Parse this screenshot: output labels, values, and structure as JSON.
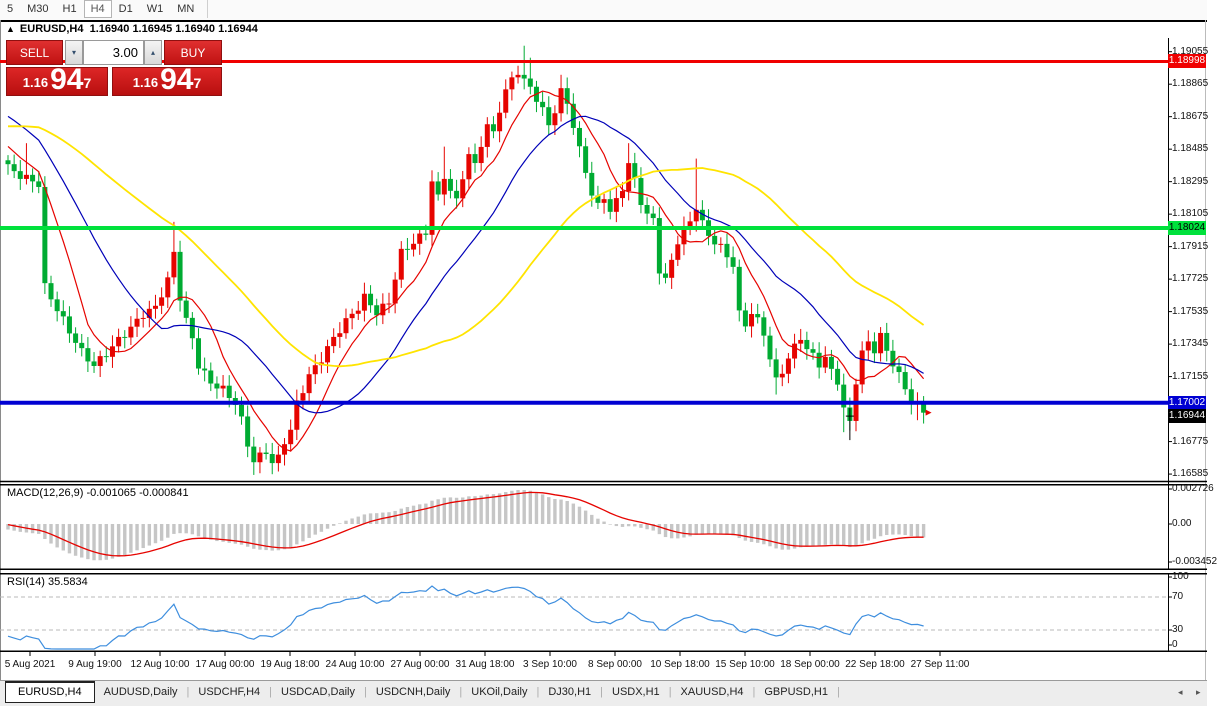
{
  "toolbar": {
    "timeframes": [
      "5",
      "M30",
      "H1",
      "H4",
      "D1",
      "W1",
      "MN"
    ],
    "active": "H4"
  },
  "window_header": {
    "collapse_icon": "▲",
    "symbol_tf": "EURUSD,H4",
    "quotes": "1.16940 1.16945 1.16940 1.16944"
  },
  "trade_panel": {
    "sell_label": "SELL",
    "buy_label": "BUY",
    "volume": "3.00",
    "stepper_down_icon": "▾",
    "stepper_up_icon": "▴",
    "sell_price": {
      "small": "1.16",
      "big": "94",
      "sup": "7"
    },
    "buy_price": {
      "small": "1.16",
      "big": "94",
      "sup": "7"
    }
  },
  "tabs": {
    "items": [
      "EURUSD,H4",
      "AUDUSD,Daily",
      "USDCHF,H4",
      "USDCAD,Daily",
      "USDCNH,Daily",
      "UKOil,Daily",
      "DJ30,H1",
      "USDX,H1",
      "XAUUSD,H4",
      "GBPUSD,H1"
    ],
    "active": "EURUSD,H4",
    "scroll_left_icon": "◂",
    "scroll_right_icon": "▸"
  },
  "chart_data": {
    "type": "candlestick",
    "symbol": "EURUSD",
    "timeframe": "H4",
    "up_color": "#e60400",
    "down_color": "#00ab32",
    "price_axis_ticks": [
      "1.19055",
      "1.18865",
      "1.18675",
      "1.18485",
      "1.18295",
      "1.18105",
      "1.17915",
      "1.17725",
      "1.17535",
      "1.17345",
      "1.17155",
      "1.16775",
      "1.16585"
    ],
    "time_axis_labels": [
      "5 Aug 2021",
      "9 Aug 19:00",
      "12 Aug 10:00",
      "17 Aug 00:00",
      "19 Aug 18:00",
      "24 Aug 10:00",
      "27 Aug 00:00",
      "31 Aug 18:00",
      "3 Sep 10:00",
      "8 Sep 00:00",
      "10 Sep 18:00",
      "15 Sep 10:00",
      "18 Sep 00:00",
      "22 Sep 18:00",
      "27 Sep 11:00"
    ],
    "levels": [
      {
        "price": 1.18998,
        "label": "1.18998",
        "color": "#f00000",
        "text": "#ffffff",
        "width": 3
      },
      {
        "price": 1.18024,
        "label": "1.18024",
        "color": "#00e13c",
        "text": "#000000",
        "width": 4
      },
      {
        "price": 1.17002,
        "label": "1.17002",
        "color": "#0000d2",
        "text": "#ffffff",
        "width": 4
      }
    ],
    "current_price": {
      "value": 1.16944,
      "label": "1.16944",
      "badge_bg": "#000000",
      "badge_text": "#ffffff"
    },
    "candle_count": 150,
    "close_keyframes": [
      [
        0,
        1.1838
      ],
      [
        2,
        1.1833
      ],
      [
        4,
        1.183
      ],
      [
        5,
        1.1828
      ],
      [
        6,
        1.1768
      ],
      [
        8,
        1.1755
      ],
      [
        10,
        1.1742
      ],
      [
        12,
        1.173
      ],
      [
        14,
        1.1722
      ],
      [
        16,
        1.1729
      ],
      [
        18,
        1.1737
      ],
      [
        20,
        1.1744
      ],
      [
        22,
        1.1752
      ],
      [
        24,
        1.1756
      ],
      [
        26,
        1.1772
      ],
      [
        27,
        1.1788
      ],
      [
        28,
        1.1762
      ],
      [
        29,
        1.1748
      ],
      [
        30,
        1.1738
      ],
      [
        31,
        1.1722
      ],
      [
        33,
        1.1712
      ],
      [
        35,
        1.1708
      ],
      [
        37,
        1.17
      ],
      [
        38,
        1.169
      ],
      [
        39,
        1.1676
      ],
      [
        40,
        1.1666
      ],
      [
        42,
        1.1672
      ],
      [
        43,
        1.1665
      ],
      [
        44,
        1.1668
      ],
      [
        45,
        1.1678
      ],
      [
        46,
        1.1684
      ],
      [
        47,
        1.17
      ],
      [
        49,
        1.1716
      ],
      [
        51,
        1.1726
      ],
      [
        53,
        1.1738
      ],
      [
        55,
        1.1748
      ],
      [
        57,
        1.1756
      ],
      [
        58,
        1.1762
      ],
      [
        60,
        1.1753
      ],
      [
        62,
        1.1759
      ],
      [
        64,
        1.1788
      ],
      [
        66,
        1.1794
      ],
      [
        68,
        1.18
      ],
      [
        69,
        1.183
      ],
      [
        70,
        1.182
      ],
      [
        71,
        1.1833
      ],
      [
        72,
        1.1824
      ],
      [
        73,
        1.1818
      ],
      [
        74,
        1.1833
      ],
      [
        75,
        1.1845
      ],
      [
        76,
        1.1839
      ],
      [
        77,
        1.1852
      ],
      [
        78,
        1.1862
      ],
      [
        79,
        1.1858
      ],
      [
        80,
        1.1872
      ],
      [
        81,
        1.1882
      ],
      [
        82,
        1.189
      ],
      [
        83,
        1.1894
      ],
      [
        84,
        1.1888
      ],
      [
        85,
        1.1885
      ],
      [
        86,
        1.1878
      ],
      [
        87,
        1.1871
      ],
      [
        88,
        1.1863
      ],
      [
        89,
        1.1871
      ],
      [
        90,
        1.1882
      ],
      [
        91,
        1.1876
      ],
      [
        92,
        1.1862
      ],
      [
        93,
        1.1848
      ],
      [
        94,
        1.1836
      ],
      [
        95,
        1.1822
      ],
      [
        96,
        1.1815
      ],
      [
        97,
        1.1821
      ],
      [
        98,
        1.1812
      ],
      [
        99,
        1.1818
      ],
      [
        100,
        1.1826
      ],
      [
        101,
        1.184
      ],
      [
        102,
        1.183
      ],
      [
        103,
        1.1818
      ],
      [
        104,
        1.181
      ],
      [
        105,
        1.1807
      ],
      [
        106,
        1.1778
      ],
      [
        107,
        1.1772
      ],
      [
        108,
        1.1783
      ],
      [
        109,
        1.1795
      ],
      [
        110,
        1.1801
      ],
      [
        111,
        1.1806
      ],
      [
        112,
        1.1815
      ],
      [
        113,
        1.1805
      ],
      [
        114,
        1.1798
      ],
      [
        116,
        1.1791
      ],
      [
        118,
        1.1781
      ],
      [
        119,
        1.1752
      ],
      [
        120,
        1.1746
      ],
      [
        121,
        1.1753
      ],
      [
        122,
        1.1748
      ],
      [
        123,
        1.1741
      ],
      [
        124,
        1.1726
      ],
      [
        125,
        1.1713
      ],
      [
        126,
        1.1719
      ],
      [
        127,
        1.1726
      ],
      [
        128,
        1.1733
      ],
      [
        129,
        1.1739
      ],
      [
        130,
        1.1731
      ],
      [
        131,
        1.1728
      ],
      [
        132,
        1.1723
      ],
      [
        133,
        1.1726
      ],
      [
        134,
        1.1719
      ],
      [
        135,
        1.1713
      ],
      [
        136,
        1.1696
      ],
      [
        137,
        1.1689
      ],
      [
        138,
        1.1713
      ],
      [
        139,
        1.1729
      ],
      [
        140,
        1.1736
      ],
      [
        141,
        1.1731
      ],
      [
        142,
        1.1739
      ],
      [
        143,
        1.1731
      ],
      [
        144,
        1.1723
      ],
      [
        145,
        1.1716
      ],
      [
        146,
        1.1709
      ],
      [
        147,
        1.1701
      ],
      [
        148,
        1.1698
      ],
      [
        149,
        1.16944
      ]
    ],
    "wick_high_overrides": [
      [
        3,
        1.1852
      ],
      [
        27,
        1.1806
      ],
      [
        71,
        1.185
      ],
      [
        84,
        1.1909
      ],
      [
        85,
        1.1902
      ],
      [
        90,
        1.1892
      ],
      [
        101,
        1.1852
      ],
      [
        112,
        1.1843
      ]
    ],
    "wick_low_overrides": [
      [
        40,
        1.1658
      ],
      [
        44,
        1.166
      ],
      [
        125,
        1.1705
      ],
      [
        136,
        1.1683
      ],
      [
        137,
        1.1684
      ],
      [
        148,
        1.169
      ],
      [
        149,
        1.169
      ]
    ],
    "ma_lines": [
      {
        "period": 8,
        "color": "#e60400",
        "width": 1.2
      },
      {
        "period": 20,
        "color": "#0000b8",
        "width": 1.2
      },
      {
        "period": 45,
        "color": "#ffe400",
        "width": 1.8
      }
    ],
    "macd": {
      "label": "MACD(12,26,9) -0.001065 -0.000841",
      "fast": 12,
      "slow": 26,
      "signal": 9,
      "axis_ticks": [
        "0.002726",
        "0.00",
        "-0.003452"
      ],
      "hist_color": "#c6c6c6",
      "signal_color": "#e60400"
    },
    "rsi": {
      "label": "RSI(14) 35.5834",
      "period": 14,
      "axis_ticks": [
        "100",
        "70",
        "30",
        "0"
      ],
      "guide_levels": [
        70,
        30
      ],
      "color": "#3e8ede"
    },
    "markers": {
      "dagger_price": 1.16924,
      "dagger_index": 137,
      "last_price_arrow_color": "#e60400"
    }
  }
}
